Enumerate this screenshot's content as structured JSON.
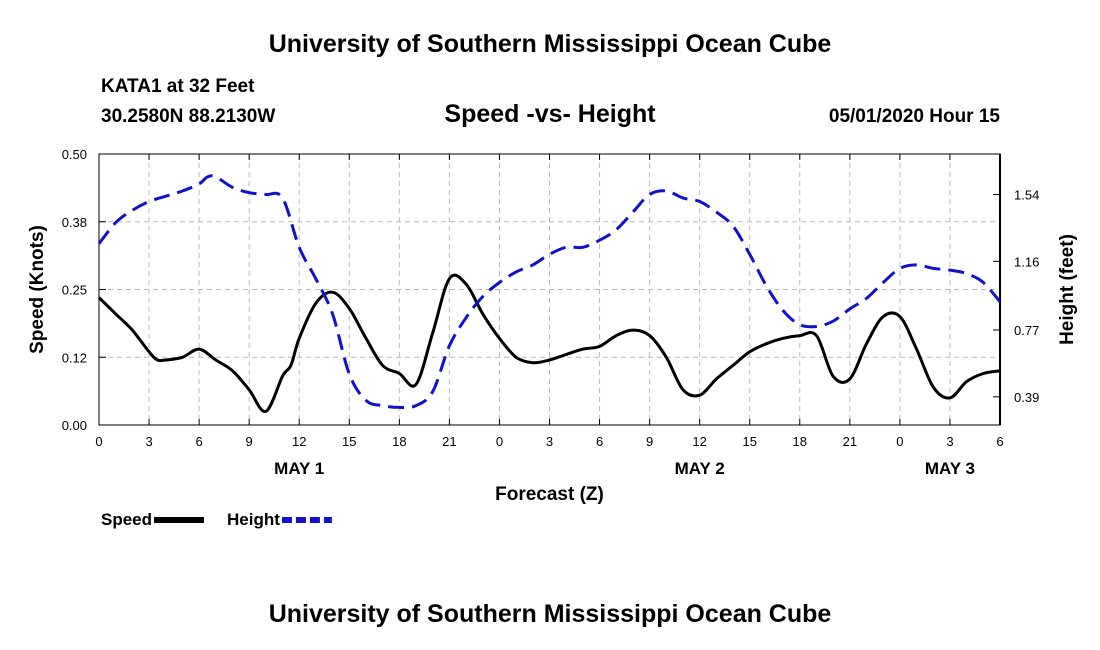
{
  "header": {
    "title": "University of Southern Mississippi Ocean Cube",
    "station": "KATA1 at 32 Feet",
    "coords": "30.2580N 88.2130W",
    "datetime": "05/01/2020 Hour 15"
  },
  "footer": {
    "title": "University of Southern Mississippi Ocean Cube"
  },
  "colors": {
    "speed": "#000000",
    "height": "#1111cc",
    "grid": "#bbbbbb"
  },
  "chart_data": {
    "type": "line",
    "title": "Speed -vs- Height",
    "xlabel": "Forecast (Z)",
    "ylabel": "Speed (Knots)",
    "y2label": "Height (feet)",
    "xlim": [
      0,
      54
    ],
    "ylim": [
      0,
      0.5
    ],
    "y2lim": [
      0.23,
      1.77
    ],
    "x_ticks": [
      0,
      3,
      6,
      9,
      12,
      15,
      18,
      21,
      24,
      27,
      30,
      33,
      36,
      39,
      42,
      45,
      48,
      51,
      54
    ],
    "x_tick_labels": [
      "0",
      "3",
      "6",
      "9",
      "12",
      "15",
      "18",
      "21",
      "0",
      "3",
      "6",
      "9",
      "12",
      "15",
      "18",
      "21",
      "0",
      "3",
      "6"
    ],
    "y_ticks": [
      0,
      0.125,
      0.25,
      0.375,
      0.5
    ],
    "y_tick_labels": [
      "0.00",
      "0.12",
      "0.25",
      "0.38",
      "0.50"
    ],
    "y2_ticks": [
      0.39,
      0.77,
      1.16,
      1.54
    ],
    "y2_tick_labels": [
      "0.39",
      "0.77",
      "1.16",
      "1.54"
    ],
    "day_labels": [
      {
        "x": 12,
        "label": "MAY 1"
      },
      {
        "x": 36,
        "label": "MAY 2"
      },
      {
        "x": 51,
        "label": "MAY 3"
      }
    ],
    "series": [
      {
        "name": "Speed",
        "axis": "left",
        "style": "solid",
        "x": [
          0,
          1,
          2,
          3,
          3.5,
          4,
          5,
          6,
          7,
          8,
          9,
          10,
          11,
          11.5,
          12,
          13,
          14,
          15,
          16,
          17,
          18,
          19,
          20,
          21,
          22,
          23,
          24,
          25,
          26,
          27,
          28,
          29,
          30,
          31,
          32,
          33,
          34,
          35,
          36,
          37,
          38,
          39,
          40,
          41,
          42,
          43,
          44,
          45,
          46,
          47,
          48,
          49,
          50,
          51,
          52,
          53,
          54
        ],
        "values": [
          0.235,
          0.205,
          0.175,
          0.135,
          0.12,
          0.12,
          0.125,
          0.14,
          0.12,
          0.1,
          0.065,
          0.025,
          0.09,
          0.11,
          0.16,
          0.225,
          0.245,
          0.215,
          0.16,
          0.11,
          0.095,
          0.075,
          0.17,
          0.27,
          0.26,
          0.205,
          0.16,
          0.125,
          0.115,
          0.12,
          0.13,
          0.14,
          0.145,
          0.165,
          0.175,
          0.165,
          0.125,
          0.065,
          0.055,
          0.085,
          0.11,
          0.135,
          0.15,
          0.16,
          0.165,
          0.165,
          0.09,
          0.085,
          0.15,
          0.2,
          0.2,
          0.14,
          0.07,
          0.05,
          0.08,
          0.095,
          0.1
        ]
      },
      {
        "name": "Height",
        "axis": "right",
        "style": "dashed",
        "x": [
          0,
          1,
          2,
          3,
          4,
          5,
          6,
          6.5,
          7,
          8,
          9,
          10,
          11,
          12,
          13,
          14,
          15,
          16,
          17,
          18,
          19,
          20,
          21,
          22,
          23,
          24,
          25,
          26,
          27,
          28,
          29,
          30,
          31,
          32,
          33,
          34,
          35,
          36,
          37,
          38,
          39,
          40,
          41,
          42,
          43,
          44,
          45,
          46,
          47,
          48,
          49,
          50,
          51,
          52,
          53,
          54
        ],
        "values": [
          1.26,
          1.38,
          1.45,
          1.5,
          1.53,
          1.56,
          1.6,
          1.64,
          1.64,
          1.58,
          1.55,
          1.54,
          1.52,
          1.24,
          1.06,
          0.86,
          0.52,
          0.37,
          0.34,
          0.33,
          0.34,
          0.42,
          0.68,
          0.84,
          0.96,
          1.04,
          1.1,
          1.14,
          1.2,
          1.24,
          1.24,
          1.28,
          1.34,
          1.44,
          1.54,
          1.56,
          1.52,
          1.5,
          1.44,
          1.36,
          1.2,
          1.02,
          0.88,
          0.8,
          0.79,
          0.82,
          0.89,
          0.95,
          1.04,
          1.12,
          1.14,
          1.12,
          1.11,
          1.09,
          1.04,
          0.93
        ]
      }
    ],
    "legend": [
      {
        "name": "Speed",
        "style": "solid"
      },
      {
        "name": "Height",
        "style": "dashed"
      }
    ],
    "legend_position": "bottom-left",
    "grid": true
  }
}
